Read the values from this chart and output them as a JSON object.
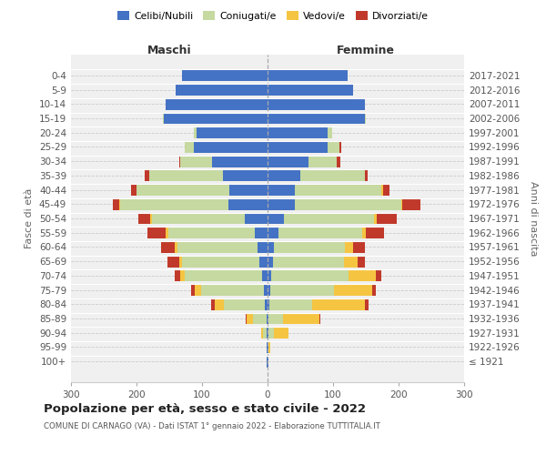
{
  "age_groups": [
    "100+",
    "95-99",
    "90-94",
    "85-89",
    "80-84",
    "75-79",
    "70-74",
    "65-69",
    "60-64",
    "55-59",
    "50-54",
    "45-49",
    "40-44",
    "35-39",
    "30-34",
    "25-29",
    "20-24",
    "15-19",
    "10-14",
    "5-9",
    "0-4"
  ],
  "birth_years": [
    "≤ 1921",
    "1922-1926",
    "1927-1931",
    "1932-1936",
    "1937-1941",
    "1942-1946",
    "1947-1951",
    "1952-1956",
    "1957-1961",
    "1962-1966",
    "1967-1971",
    "1972-1976",
    "1977-1981",
    "1982-1986",
    "1987-1991",
    "1992-1996",
    "1997-2001",
    "2002-2006",
    "2007-2011",
    "2012-2016",
    "2017-2021"
  ],
  "male": {
    "celibi": [
      1,
      1,
      2,
      2,
      4,
      6,
      8,
      12,
      15,
      20,
      35,
      60,
      58,
      68,
      85,
      112,
      108,
      158,
      155,
      140,
      130
    ],
    "coniugati": [
      0,
      0,
      5,
      20,
      62,
      95,
      118,
      118,
      122,
      132,
      142,
      165,
      142,
      112,
      48,
      14,
      4,
      2,
      0,
      0,
      0
    ],
    "vedovi": [
      0,
      0,
      3,
      10,
      15,
      10,
      8,
      5,
      4,
      3,
      2,
      1,
      0,
      0,
      0,
      0,
      0,
      0,
      0,
      0,
      0
    ],
    "divorziati": [
      0,
      0,
      0,
      2,
      5,
      5,
      8,
      18,
      22,
      28,
      18,
      10,
      8,
      8,
      2,
      1,
      0,
      0,
      0,
      0,
      0
    ]
  },
  "female": {
    "nubili": [
      1,
      2,
      2,
      2,
      3,
      4,
      5,
      8,
      10,
      16,
      25,
      42,
      42,
      50,
      62,
      92,
      92,
      148,
      148,
      130,
      122
    ],
    "coniugate": [
      0,
      0,
      8,
      22,
      65,
      98,
      118,
      108,
      108,
      128,
      138,
      162,
      132,
      98,
      44,
      18,
      6,
      2,
      0,
      0,
      0
    ],
    "vedove": [
      0,
      2,
      22,
      55,
      80,
      58,
      42,
      22,
      12,
      6,
      4,
      2,
      2,
      0,
      0,
      0,
      0,
      0,
      0,
      0,
      0
    ],
    "divorziate": [
      0,
      0,
      0,
      2,
      6,
      5,
      8,
      10,
      18,
      28,
      30,
      28,
      10,
      5,
      5,
      2,
      0,
      0,
      0,
      0,
      0
    ]
  },
  "colors": {
    "celibi": "#4472c4",
    "coniugati": "#c5d9a0",
    "vedovi": "#f5c542",
    "divorziati": "#c0392b"
  },
  "xlim": 300,
  "title": "Popolazione per età, sesso e stato civile - 2022",
  "subtitle": "COMUNE DI CARNAGO (VA) - Dati ISTAT 1° gennaio 2022 - Elaborazione TUTTITALIA.IT",
  "ylabel_left": "Fasce di età",
  "ylabel_right": "Anni di nascita",
  "xlabel_male": "Maschi",
  "xlabel_female": "Femmine",
  "legend_labels": [
    "Celibi/Nubili",
    "Coniugati/e",
    "Vedovi/e",
    "Divorziati/e"
  ],
  "bg_color": "#f0f0f0"
}
